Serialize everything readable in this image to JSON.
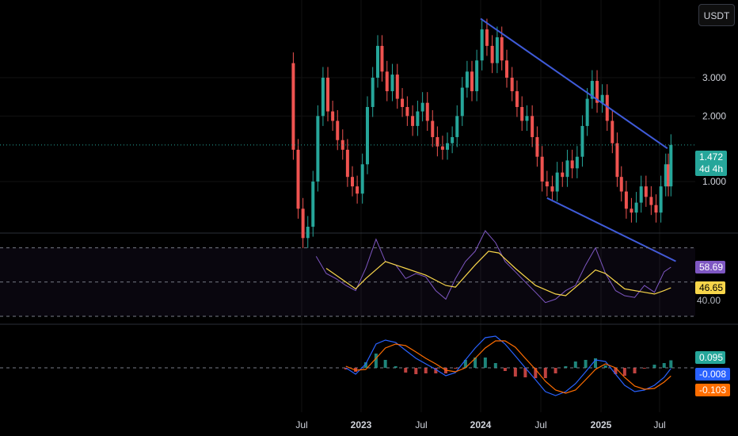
{
  "currency": {
    "label": "USDT"
  },
  "price_panel": {
    "last_price": "1.472",
    "countdown": "4d 4h",
    "price_color": "#26a69a",
    "up_color": "#26a69a",
    "down_color": "#ef5350",
    "trendline_color": "#3f5bd9"
  },
  "rsi_panel": {
    "rsi_value": "58.69",
    "ma_value": "46.65",
    "lower_band": "40.00",
    "rsi_color": "#7e57c2",
    "ma_color": "#f7d54a"
  },
  "macd_panel": {
    "histogram_value": "0.095",
    "macd_value": "-0.008",
    "signal_value": "-0.103",
    "histogram_color": "#26a69a",
    "macd_color": "#2962ff",
    "signal_color": "#ff6d00"
  },
  "chart_data": {
    "type": "candlestick",
    "price_axis": {
      "scale": "log",
      "ticks": [
        "3.000",
        "2.000",
        "1.000"
      ],
      "tick_values": [
        3.0,
        2.0,
        1.0
      ]
    },
    "time_axis": {
      "ticks": [
        "Jul",
        "2023",
        "Jul",
        "2024",
        "Jul",
        "2025",
        "Jul"
      ]
    },
    "date_range": [
      "2022-05",
      "2025-08"
    ],
    "trendlines": [
      {
        "name": "upper",
        "points": [
          [
            "2024-01-01",
            5.6
          ],
          [
            "2025-07-25",
            1.42
          ]
        ]
      },
      {
        "name": "lower",
        "points": [
          [
            "2024-07-20",
            0.84
          ],
          [
            "2025-08-20",
            0.43
          ]
        ]
      }
    ],
    "price_series": [
      [
        "2022-05-20",
        3.5
      ],
      [
        "2022-06-05",
        1.4
      ],
      [
        "2022-06-20",
        0.75
      ],
      [
        "2022-07-05",
        0.55
      ],
      [
        "2022-07-20",
        0.62
      ],
      [
        "2022-08-05",
        1.0
      ],
      [
        "2022-08-20",
        2.0
      ],
      [
        "2022-09-05",
        3.0
      ],
      [
        "2022-09-20",
        2.1
      ],
      [
        "2022-10-05",
        1.9
      ],
      [
        "2022-10-20",
        1.55
      ],
      [
        "2022-11-05",
        1.4
      ],
      [
        "2022-11-20",
        1.05
      ],
      [
        "2022-12-05",
        0.95
      ],
      [
        "2022-12-20",
        0.88
      ],
      [
        "2023-01-05",
        1.2
      ],
      [
        "2023-01-20",
        2.2
      ],
      [
        "2023-02-05",
        3.0
      ],
      [
        "2023-02-20",
        4.2
      ],
      [
        "2023-03-05",
        3.2
      ],
      [
        "2023-03-20",
        2.6
      ],
      [
        "2023-04-05",
        3.1
      ],
      [
        "2023-04-20",
        2.4
      ],
      [
        "2023-05-05",
        2.2
      ],
      [
        "2023-05-20",
        2.0
      ],
      [
        "2023-06-05",
        1.8
      ],
      [
        "2023-06-20",
        2.1
      ],
      [
        "2023-07-05",
        2.3
      ],
      [
        "2023-07-20",
        1.9
      ],
      [
        "2023-08-05",
        1.6
      ],
      [
        "2023-08-20",
        1.45
      ],
      [
        "2023-09-05",
        1.4
      ],
      [
        "2023-09-20",
        1.5
      ],
      [
        "2023-10-05",
        1.6
      ],
      [
        "2023-10-20",
        2.0
      ],
      [
        "2023-11-05",
        2.7
      ],
      [
        "2023-11-20",
        3.2
      ],
      [
        "2023-12-05",
        2.6
      ],
      [
        "2023-12-20",
        3.6
      ],
      [
        "2024-01-05",
        5.0
      ],
      [
        "2024-01-20",
        4.2
      ],
      [
        "2024-02-05",
        3.5
      ],
      [
        "2024-02-20",
        4.6
      ],
      [
        "2024-03-05",
        3.6
      ],
      [
        "2024-03-20",
        3.0
      ],
      [
        "2024-04-05",
        2.6
      ],
      [
        "2024-04-20",
        2.2
      ],
      [
        "2024-05-05",
        1.9
      ],
      [
        "2024-05-20",
        2.0
      ],
      [
        "2024-06-05",
        1.6
      ],
      [
        "2024-06-20",
        1.3
      ],
      [
        "2024-07-05",
        1.0
      ],
      [
        "2024-07-20",
        0.95
      ],
      [
        "2024-08-05",
        0.9
      ],
      [
        "2024-08-20",
        1.1
      ],
      [
        "2024-09-05",
        1.05
      ],
      [
        "2024-09-20",
        1.25
      ],
      [
        "2024-10-05",
        1.15
      ],
      [
        "2024-10-20",
        1.3
      ],
      [
        "2024-11-05",
        1.8
      ],
      [
        "2024-11-20",
        2.4
      ],
      [
        "2024-12-05",
        2.9
      ],
      [
        "2024-12-20",
        2.3
      ],
      [
        "2025-01-05",
        2.5
      ],
      [
        "2025-01-20",
        1.9
      ],
      [
        "2025-02-05",
        1.5
      ],
      [
        "2025-02-20",
        1.05
      ],
      [
        "2025-03-05",
        0.9
      ],
      [
        "2025-03-20",
        0.75
      ],
      [
        "2025-04-05",
        0.72
      ],
      [
        "2025-04-20",
        0.8
      ],
      [
        "2025-05-05",
        0.95
      ],
      [
        "2025-05-20",
        0.85
      ],
      [
        "2025-06-05",
        0.78
      ],
      [
        "2025-06-20",
        0.72
      ],
      [
        "2025-07-05",
        0.95
      ],
      [
        "2025-07-20",
        1.2
      ],
      [
        "2025-07-28",
        0.95
      ],
      [
        "2025-08-05",
        1.472
      ]
    ],
    "rsi_series": [
      [
        "2022-08-15",
        65
      ],
      [
        "2022-09-15",
        55
      ],
      [
        "2022-10-15",
        52
      ],
      [
        "2022-11-15",
        48
      ],
      [
        "2022-12-15",
        45
      ],
      [
        "2023-01-15",
        58
      ],
      [
        "2023-02-15",
        75
      ],
      [
        "2023-03-15",
        62
      ],
      [
        "2023-04-15",
        60
      ],
      [
        "2023-05-15",
        52
      ],
      [
        "2023-06-15",
        55
      ],
      [
        "2023-07-15",
        53
      ],
      [
        "2023-08-15",
        45
      ],
      [
        "2023-09-15",
        40
      ],
      [
        "2023-10-15",
        52
      ],
      [
        "2023-11-15",
        62
      ],
      [
        "2023-12-15",
        68
      ],
      [
        "2024-01-15",
        80
      ],
      [
        "2024-02-15",
        73
      ],
      [
        "2024-03-15",
        62
      ],
      [
        "2024-04-15",
        56
      ],
      [
        "2024-05-15",
        50
      ],
      [
        "2024-06-15",
        44
      ],
      [
        "2024-07-15",
        38
      ],
      [
        "2024-08-15",
        40
      ],
      [
        "2024-09-15",
        45
      ],
      [
        "2024-10-15",
        48
      ],
      [
        "2024-11-15",
        60
      ],
      [
        "2024-12-15",
        70
      ],
      [
        "2025-01-15",
        55
      ],
      [
        "2025-02-15",
        45
      ],
      [
        "2025-03-15",
        42
      ],
      [
        "2025-04-15",
        41
      ],
      [
        "2025-05-15",
        48
      ],
      [
        "2025-06-15",
        44
      ],
      [
        "2025-07-15",
        56
      ],
      [
        "2025-08-05",
        58.69
      ]
    ],
    "rsi_ma_series": [
      [
        "2022-09-15",
        58
      ],
      [
        "2022-11-15",
        50
      ],
      [
        "2022-12-15",
        46
      ],
      [
        "2023-01-15",
        52
      ],
      [
        "2023-03-15",
        62
      ],
      [
        "2023-05-15",
        58
      ],
      [
        "2023-07-15",
        54
      ],
      [
        "2023-09-15",
        48
      ],
      [
        "2023-10-15",
        47
      ],
      [
        "2023-12-15",
        60
      ],
      [
        "2024-01-25",
        68
      ],
      [
        "2024-02-25",
        67
      ],
      [
        "2024-04-15",
        58
      ],
      [
        "2024-06-15",
        48
      ],
      [
        "2024-08-15",
        43
      ],
      [
        "2024-09-15",
        42
      ],
      [
        "2024-11-15",
        52
      ],
      [
        "2024-12-15",
        57
      ],
      [
        "2025-01-15",
        55
      ],
      [
        "2025-03-15",
        46
      ],
      [
        "2025-05-15",
        44
      ],
      [
        "2025-06-15",
        43
      ],
      [
        "2025-07-15",
        45
      ],
      [
        "2025-08-05",
        46.65
      ]
    ],
    "macd_series": [
      [
        "2022-11-15",
        0.0
      ],
      [
        "2022-12-15",
        -0.08
      ],
      [
        "2023-01-15",
        0.05
      ],
      [
        "2023-02-15",
        0.3
      ],
      [
        "2023-03-15",
        0.35
      ],
      [
        "2023-04-15",
        0.32
      ],
      [
        "2023-05-15",
        0.22
      ],
      [
        "2023-06-15",
        0.12
      ],
      [
        "2023-07-15",
        0.05
      ],
      [
        "2023-08-15",
        -0.02
      ],
      [
        "2023-09-15",
        -0.1
      ],
      [
        "2023-10-15",
        -0.06
      ],
      [
        "2023-11-15",
        0.1
      ],
      [
        "2023-12-15",
        0.25
      ],
      [
        "2024-01-15",
        0.38
      ],
      [
        "2024-02-15",
        0.4
      ],
      [
        "2024-03-15",
        0.3
      ],
      [
        "2024-04-15",
        0.15
      ],
      [
        "2024-05-15",
        0.0
      ],
      [
        "2024-06-15",
        -0.15
      ],
      [
        "2024-07-15",
        -0.3
      ],
      [
        "2024-08-15",
        -0.35
      ],
      [
        "2024-09-15",
        -0.3
      ],
      [
        "2024-10-15",
        -0.2
      ],
      [
        "2024-11-15",
        -0.05
      ],
      [
        "2024-12-15",
        0.1
      ],
      [
        "2025-01-15",
        0.08
      ],
      [
        "2025-02-15",
        -0.08
      ],
      [
        "2025-03-15",
        -0.22
      ],
      [
        "2025-04-15",
        -0.3
      ],
      [
        "2025-05-15",
        -0.28
      ],
      [
        "2025-06-15",
        -0.22
      ],
      [
        "2025-07-15",
        -0.12
      ],
      [
        "2025-08-05",
        -0.008
      ]
    ],
    "signal_series": [
      [
        "2022-11-15",
        0.02
      ],
      [
        "2022-12-15",
        -0.03
      ],
      [
        "2023-01-15",
        -0.02
      ],
      [
        "2023-02-15",
        0.12
      ],
      [
        "2023-03-15",
        0.25
      ],
      [
        "2023-04-15",
        0.3
      ],
      [
        "2023-05-15",
        0.28
      ],
      [
        "2023-06-15",
        0.2
      ],
      [
        "2023-07-15",
        0.12
      ],
      [
        "2023-08-15",
        0.05
      ],
      [
        "2023-09-15",
        -0.03
      ],
      [
        "2023-10-15",
        -0.05
      ],
      [
        "2023-11-15",
        0.0
      ],
      [
        "2023-12-15",
        0.12
      ],
      [
        "2024-01-15",
        0.25
      ],
      [
        "2024-02-15",
        0.34
      ],
      [
        "2024-03-15",
        0.34
      ],
      [
        "2024-04-15",
        0.26
      ],
      [
        "2024-05-15",
        0.12
      ],
      [
        "2024-06-15",
        -0.02
      ],
      [
        "2024-07-15",
        -0.17
      ],
      [
        "2024-08-15",
        -0.28
      ],
      [
        "2024-09-15",
        -0.32
      ],
      [
        "2024-10-15",
        -0.28
      ],
      [
        "2024-11-15",
        -0.15
      ],
      [
        "2024-12-15",
        -0.02
      ],
      [
        "2025-01-15",
        0.05
      ],
      [
        "2025-02-15",
        0.0
      ],
      [
        "2025-03-15",
        -0.12
      ],
      [
        "2025-04-15",
        -0.23
      ],
      [
        "2025-05-15",
        -0.27
      ],
      [
        "2025-06-15",
        -0.26
      ],
      [
        "2025-07-15",
        -0.18
      ],
      [
        "2025-08-05",
        -0.103
      ]
    ]
  }
}
